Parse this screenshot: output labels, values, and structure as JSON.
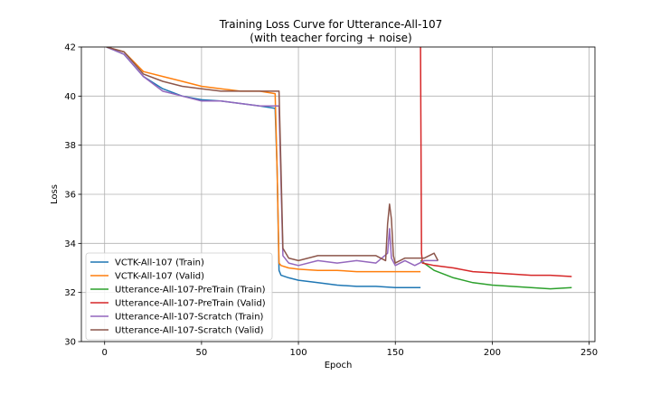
{
  "chart_data": {
    "type": "line",
    "title": "Training Loss Curve for Utterance-All-107",
    "subtitle": "(with teacher forcing + noise)",
    "xlabel": "Epoch",
    "ylabel": "Loss",
    "xlim": [
      -12,
      253
    ],
    "ylim": [
      30,
      42
    ],
    "xticks": [
      0,
      50,
      100,
      150,
      200,
      250
    ],
    "yticks": [
      30,
      32,
      34,
      36,
      38,
      40,
      42
    ],
    "grid": true,
    "legend_position": "lower-left",
    "series": [
      {
        "name": "VCTK-All-107 (Train)",
        "color": "#1f77b4",
        "x": [
          1,
          10,
          20,
          30,
          40,
          50,
          60,
          70,
          80,
          88,
          89,
          90,
          91,
          95,
          100,
          110,
          120,
          130,
          140,
          150,
          163
        ],
        "y": [
          42.0,
          41.7,
          40.8,
          40.3,
          40.0,
          39.85,
          39.8,
          39.7,
          39.6,
          39.5,
          37.0,
          32.9,
          32.7,
          32.6,
          32.5,
          32.4,
          32.3,
          32.25,
          32.25,
          32.2,
          32.2
        ]
      },
      {
        "name": "VCTK-All-107 (Valid)",
        "color": "#ff7f0e",
        "x": [
          1,
          10,
          20,
          30,
          40,
          50,
          60,
          70,
          80,
          88,
          89,
          90,
          91,
          95,
          100,
          110,
          120,
          130,
          140,
          150,
          163
        ],
        "y": [
          42.0,
          41.8,
          41.0,
          40.8,
          40.6,
          40.4,
          40.3,
          40.2,
          40.2,
          40.1,
          37.0,
          33.2,
          33.1,
          33.0,
          32.95,
          32.9,
          32.9,
          32.85,
          32.85,
          32.85,
          32.85
        ]
      },
      {
        "name": "Utterance-All-107-PreTrain (Train)",
        "color": "#2ca02c",
        "x": [
          163,
          170,
          180,
          190,
          200,
          210,
          220,
          230,
          241
        ],
        "y": [
          33.3,
          32.9,
          32.6,
          32.4,
          32.3,
          32.25,
          32.2,
          32.15,
          32.2
        ]
      },
      {
        "name": "Utterance-All-107-PreTrain (Valid)",
        "color": "#d62728",
        "x": [
          163,
          163.5,
          164,
          170,
          180,
          190,
          200,
          210,
          220,
          230,
          241
        ],
        "y": [
          42.0,
          33.6,
          33.2,
          33.1,
          33.0,
          32.85,
          32.8,
          32.75,
          32.7,
          32.7,
          32.65
        ]
      },
      {
        "name": "Utterance-All-107-Scratch (Train)",
        "color": "#9467bd",
        "x": [
          1,
          10,
          20,
          30,
          40,
          50,
          60,
          70,
          80,
          90,
          91,
          92,
          95,
          100,
          110,
          120,
          130,
          140,
          146,
          147,
          148,
          150,
          155,
          160,
          165,
          172
        ],
        "y": [
          42.0,
          41.7,
          40.8,
          40.2,
          40.0,
          39.8,
          39.8,
          39.7,
          39.6,
          39.6,
          36.5,
          33.5,
          33.2,
          33.1,
          33.3,
          33.2,
          33.3,
          33.2,
          33.6,
          34.6,
          33.4,
          33.1,
          33.3,
          33.1,
          33.3,
          33.3
        ]
      },
      {
        "name": "Utterance-All-107-Scratch (Valid)",
        "color": "#8c564b",
        "x": [
          1,
          10,
          20,
          30,
          40,
          50,
          60,
          70,
          80,
          90,
          91,
          92,
          95,
          100,
          110,
          120,
          130,
          140,
          145,
          146,
          147,
          148,
          149,
          150,
          155,
          160,
          165,
          170,
          172
        ],
        "y": [
          42.0,
          41.8,
          40.9,
          40.6,
          40.4,
          40.3,
          40.2,
          40.2,
          40.2,
          40.2,
          37.0,
          33.8,
          33.4,
          33.3,
          33.5,
          33.5,
          33.5,
          33.5,
          33.3,
          34.8,
          35.6,
          35.0,
          33.5,
          33.2,
          33.4,
          33.4,
          33.4,
          33.6,
          33.3
        ]
      }
    ]
  }
}
